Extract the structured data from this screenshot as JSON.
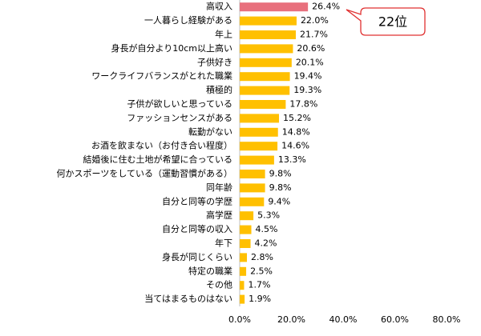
{
  "chart_data": {
    "type": "hbar",
    "categories": [
      "高収入",
      "一人暮らし経験がある",
      "年上",
      "身長が自分より10cm以上高い",
      "子供好き",
      "ワークライフバランスがとれた職業",
      "積極的",
      "子供が欲しいと思っている",
      "ファッションセンスがある",
      "転勤がない",
      "お酒を飲まない（お付き合い程度）",
      "結婚後に住む土地が希望に合っている",
      "何かスポーツをしている（運動習慣がある）",
      "同年齢",
      "自分と同等の学歴",
      "高学歴",
      "自分と同等の収入",
      "年下",
      "身長が同じくらい",
      "特定の職業",
      "その他",
      "当てはまるものはない"
    ],
    "values": [
      26.4,
      22.0,
      21.7,
      20.6,
      20.1,
      19.4,
      19.3,
      17.8,
      15.2,
      14.8,
      14.6,
      13.3,
      9.8,
      9.8,
      9.4,
      5.3,
      4.5,
      4.2,
      2.8,
      2.5,
      1.7,
      1.9
    ],
    "value_labels": [
      "26.4%",
      "22.0%",
      "21.7%",
      "20.6%",
      "20.1%",
      "19.4%",
      "19.3%",
      "17.8%",
      "15.2%",
      "14.8%",
      "14.6%",
      "13.3%",
      "9.8%",
      "9.8%",
      "9.4%",
      "5.3%",
      "4.5%",
      "4.2%",
      "2.8%",
      "2.5%",
      "1.7%",
      "1.9%"
    ],
    "colors": [
      "#e8707d",
      "#ffc000",
      "#ffc000",
      "#ffc000",
      "#ffc000",
      "#ffc000",
      "#ffc000",
      "#ffc000",
      "#ffc000",
      "#ffc000",
      "#ffc000",
      "#ffc000",
      "#ffc000",
      "#ffc000",
      "#ffc000",
      "#ffc000",
      "#ffc000",
      "#ffc000",
      "#ffc000",
      "#ffc000",
      "#ffc000",
      "#ffc000"
    ],
    "xlim": [
      0,
      80
    ],
    "xticks": [
      {
        "value": 0,
        "label": "0.0%"
      },
      {
        "value": 20,
        "label": "20.0%"
      },
      {
        "value": 40,
        "label": "40.0%"
      },
      {
        "value": 60,
        "label": "60.0%"
      },
      {
        "value": 80,
        "label": "80.0%"
      }
    ],
    "annotation": "22位"
  }
}
